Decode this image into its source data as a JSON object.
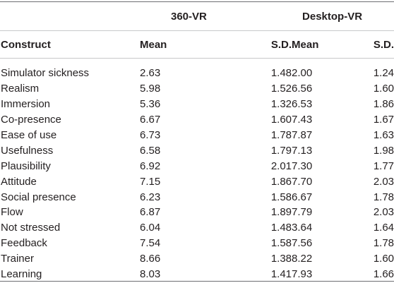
{
  "groups": {
    "vr360": "360-VR",
    "desktop": "Desktop-VR"
  },
  "headers": {
    "construct": "Construct",
    "mean_360": "Mean",
    "sd_360": "S.D.",
    "mean_desktop": "Mean",
    "sd_desktop": "S.D."
  },
  "rows": [
    {
      "construct": "Simulator sickness",
      "mean_360": "2.63",
      "sd_360": "1.48",
      "mean_desktop": "2.00",
      "sd_desktop": "1.24"
    },
    {
      "construct": "Realism",
      "mean_360": "5.98",
      "sd_360": "1.52",
      "mean_desktop": "6.56",
      "sd_desktop": "1.60"
    },
    {
      "construct": "Immersion",
      "mean_360": "5.36",
      "sd_360": "1.32",
      "mean_desktop": "6.53",
      "sd_desktop": "1.86"
    },
    {
      "construct": "Co-presence",
      "mean_360": "6.67",
      "sd_360": "1.60",
      "mean_desktop": "7.43",
      "sd_desktop": "1.67"
    },
    {
      "construct": "Ease of use",
      "mean_360": "6.73",
      "sd_360": "1.78",
      "mean_desktop": "7.87",
      "sd_desktop": "1.63"
    },
    {
      "construct": "Usefulness",
      "mean_360": "6.58",
      "sd_360": "1.79",
      "mean_desktop": "7.13",
      "sd_desktop": "1.98"
    },
    {
      "construct": "Plausibility",
      "mean_360": "6.92",
      "sd_360": "2.01",
      "mean_desktop": "7.30",
      "sd_desktop": "1.77"
    },
    {
      "construct": "Attitude",
      "mean_360": "7.15",
      "sd_360": "1.86",
      "mean_desktop": "7.70",
      "sd_desktop": "2.03"
    },
    {
      "construct": "Social presence",
      "mean_360": "6.23",
      "sd_360": "1.58",
      "mean_desktop": "6.67",
      "sd_desktop": "1.78"
    },
    {
      "construct": "Flow",
      "mean_360": "6.87",
      "sd_360": "1.89",
      "mean_desktop": "7.79",
      "sd_desktop": "2.03"
    },
    {
      "construct": "Not stressed",
      "mean_360": "6.04",
      "sd_360": "1.48",
      "mean_desktop": "3.64",
      "sd_desktop": "1.64"
    },
    {
      "construct": "Feedback",
      "mean_360": "7.54",
      "sd_360": "1.58",
      "mean_desktop": "7.56",
      "sd_desktop": "1.78"
    },
    {
      "construct": "Trainer",
      "mean_360": "8.66",
      "sd_360": "1.38",
      "mean_desktop": "8.22",
      "sd_desktop": "1.60"
    },
    {
      "construct": "Learning",
      "mean_360": "8.03",
      "sd_360": "1.41",
      "mean_desktop": "7.93",
      "sd_desktop": "1.66"
    }
  ],
  "colors": {
    "text": "#231f20",
    "rule_heavy": "#6d6e71",
    "rule_light": "#c7c8ca",
    "background": "#ffffff"
  }
}
